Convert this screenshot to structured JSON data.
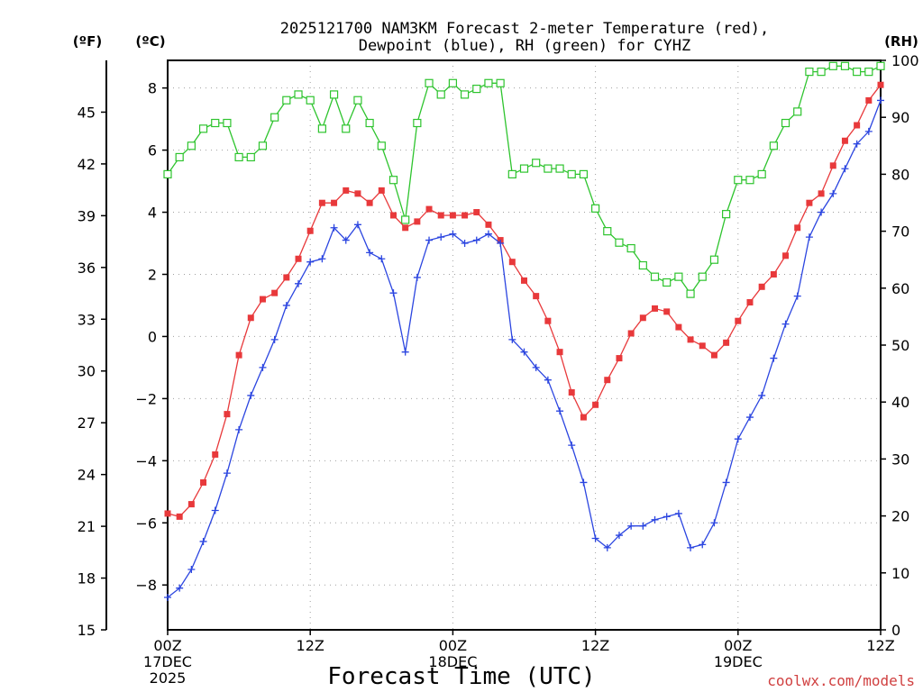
{
  "chart_data": {
    "type": "line",
    "title": "2025121700 NAM3KM Forecast 2-meter Temperature (red),",
    "subtitle": "Dewpoint (blue), RH (green) for CYHZ",
    "xlabel": "Forecast Time (UTC)",
    "watermark": "coolwx.com/models",
    "unit_left_outer": "(ºF)",
    "unit_left_inner": "(ºC)",
    "unit_right": "(RH)",
    "x_units": "forecast hour from 2025-12-17 00Z",
    "xlim": [
      0,
      60
    ],
    "ylim_c": [
      -9.444,
      8.889
    ],
    "ylim_f": [
      15,
      48
    ],
    "ylim_rh": [
      0,
      100
    ],
    "x_ticks": [
      {
        "hour": 0,
        "line1": "00Z",
        "line2": "17DEC",
        "line3": "2025"
      },
      {
        "hour": 12,
        "line1": "12Z",
        "line2": "",
        "line3": ""
      },
      {
        "hour": 24,
        "line1": "00Z",
        "line2": "18DEC",
        "line3": ""
      },
      {
        "hour": 36,
        "line1": "12Z",
        "line2": "",
        "line3": ""
      },
      {
        "hour": 48,
        "line1": "00Z",
        "line2": "19DEC",
        "line3": ""
      },
      {
        "hour": 60,
        "line1": "12Z",
        "line2": "",
        "line3": ""
      }
    ],
    "c_ticks": [
      -8,
      -6,
      -4,
      -2,
      0,
      2,
      4,
      6,
      8
    ],
    "f_ticks": [
      15,
      18,
      21,
      24,
      27,
      30,
      33,
      36,
      39,
      42,
      45
    ],
    "rh_ticks": [
      0,
      10,
      20,
      30,
      40,
      50,
      60,
      70,
      80,
      90,
      100
    ],
    "series": [
      {
        "name": "2-meter Temperature",
        "units": "C",
        "color": "#e8393b",
        "marker": "filled-square",
        "hours": [
          0,
          1,
          2,
          3,
          4,
          5,
          6,
          7,
          8,
          9,
          10,
          11,
          12,
          13,
          14,
          15,
          16,
          17,
          18,
          19,
          20,
          21,
          22,
          23,
          24,
          25,
          26,
          27,
          28,
          29,
          30,
          31,
          32,
          33,
          34,
          35,
          36,
          37,
          38,
          39,
          40,
          41,
          42,
          43,
          44,
          45,
          46,
          47,
          48,
          49,
          50,
          51,
          52,
          53,
          54,
          55,
          56,
          57,
          58,
          59,
          60
        ],
        "values": [
          -5.7,
          -5.8,
          -5.4,
          -4.7,
          -3.8,
          -2.5,
          -0.6,
          0.6,
          1.2,
          1.4,
          1.9,
          2.5,
          3.4,
          4.3,
          4.3,
          4.7,
          4.6,
          4.3,
          4.7,
          3.9,
          3.5,
          3.7,
          4.1,
          3.9,
          3.9,
          3.9,
          4.0,
          3.6,
          3.1,
          2.4,
          1.8,
          1.3,
          0.5,
          -0.5,
          -1.8,
          -2.6,
          -2.2,
          -1.4,
          -0.7,
          0.1,
          0.6,
          0.9,
          0.8,
          0.3,
          -0.1,
          -0.3,
          -0.6,
          -0.2,
          0.5,
          1.1,
          1.6,
          2.0,
          2.6,
          3.5,
          4.3,
          4.6,
          5.5,
          6.3,
          6.8,
          7.6,
          8.1
        ]
      },
      {
        "name": "Dewpoint",
        "units": "C",
        "color": "#2b45e0",
        "marker": "plus",
        "hours": [
          0,
          1,
          2,
          3,
          4,
          5,
          6,
          7,
          8,
          9,
          10,
          11,
          12,
          13,
          14,
          15,
          16,
          17,
          18,
          19,
          20,
          21,
          22,
          23,
          24,
          25,
          26,
          27,
          28,
          29,
          30,
          31,
          32,
          33,
          34,
          35,
          36,
          37,
          38,
          39,
          40,
          41,
          42,
          43,
          44,
          45,
          46,
          47,
          48,
          49,
          50,
          51,
          52,
          53,
          54,
          55,
          56,
          57,
          58,
          59,
          60
        ],
        "values": [
          -8.4,
          -8.1,
          -7.5,
          -6.6,
          -5.6,
          -4.4,
          -3.0,
          -1.9,
          -1.0,
          -0.1,
          1.0,
          1.7,
          2.4,
          2.5,
          3.5,
          3.1,
          3.6,
          2.7,
          2.5,
          1.4,
          -0.5,
          1.9,
          3.1,
          3.2,
          3.3,
          3.0,
          3.1,
          3.3,
          3.0,
          -0.1,
          -0.5,
          -1.0,
          -1.4,
          -2.4,
          -3.5,
          -4.7,
          -6.5,
          -6.8,
          -6.4,
          -6.1,
          -6.1,
          -5.9,
          -5.8,
          -5.7,
          -6.8,
          -6.7,
          -6.0,
          -4.7,
          -3.3,
          -2.6,
          -1.9,
          -0.7,
          0.4,
          1.3,
          3.2,
          4.0,
          4.6,
          5.4,
          6.2,
          6.6,
          7.6
        ]
      },
      {
        "name": "RH",
        "units": "%",
        "color": "#2ec42e",
        "marker": "open-square",
        "hours": [
          0,
          1,
          2,
          3,
          4,
          5,
          6,
          7,
          8,
          9,
          10,
          11,
          12,
          13,
          14,
          15,
          16,
          17,
          18,
          19,
          20,
          21,
          22,
          23,
          24,
          25,
          26,
          27,
          28,
          29,
          30,
          31,
          32,
          33,
          34,
          35,
          36,
          37,
          38,
          39,
          40,
          41,
          42,
          43,
          44,
          45,
          46,
          47,
          48,
          49,
          50,
          51,
          52,
          53,
          54,
          55,
          56,
          57,
          58,
          59,
          60
        ],
        "values": [
          80,
          83,
          85,
          88,
          89,
          89,
          83,
          83,
          85,
          90,
          93,
          94,
          93,
          88,
          94,
          88,
          93,
          89,
          85,
          79,
          72,
          89,
          96,
          94,
          96,
          94,
          95,
          96,
          96,
          80,
          81,
          82,
          81,
          81,
          80,
          80,
          74,
          70,
          68,
          67,
          64,
          62,
          61,
          62,
          59,
          62,
          65,
          73,
          79,
          79,
          80,
          85,
          89,
          91,
          98,
          98,
          99,
          99,
          98,
          98,
          99
        ]
      }
    ]
  }
}
